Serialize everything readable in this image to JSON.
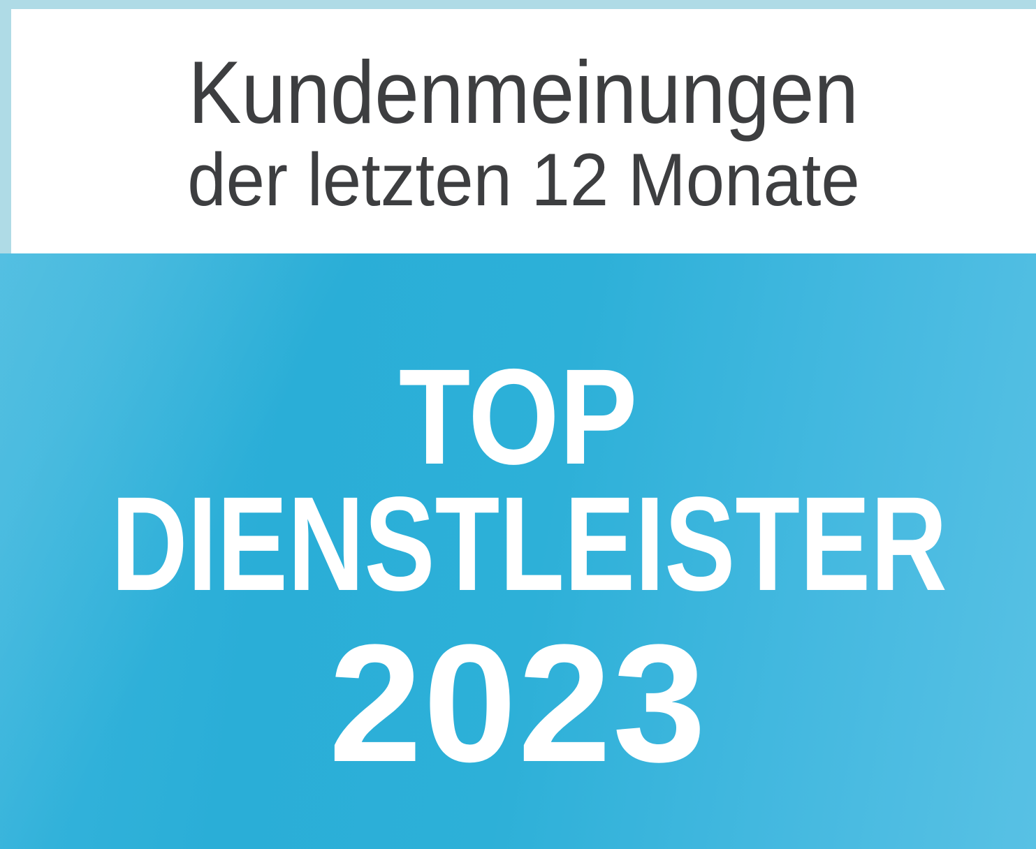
{
  "badge": {
    "header": {
      "line1": "Kundenmeinungen",
      "line2": "der letzten 12 Monate"
    },
    "seal": {
      "line1": "TOP",
      "line2": "DIENSTLEISTER",
      "line3": "2023"
    },
    "colors": {
      "frame_pale_blue": "#afdbe6",
      "panel_white": "#ffffff",
      "header_text_gray": "#3d3e40",
      "seal_blue_dark": "#2aaed7",
      "seal_blue_light": "#58c1e4",
      "seal_text_white": "#ffffff"
    }
  }
}
